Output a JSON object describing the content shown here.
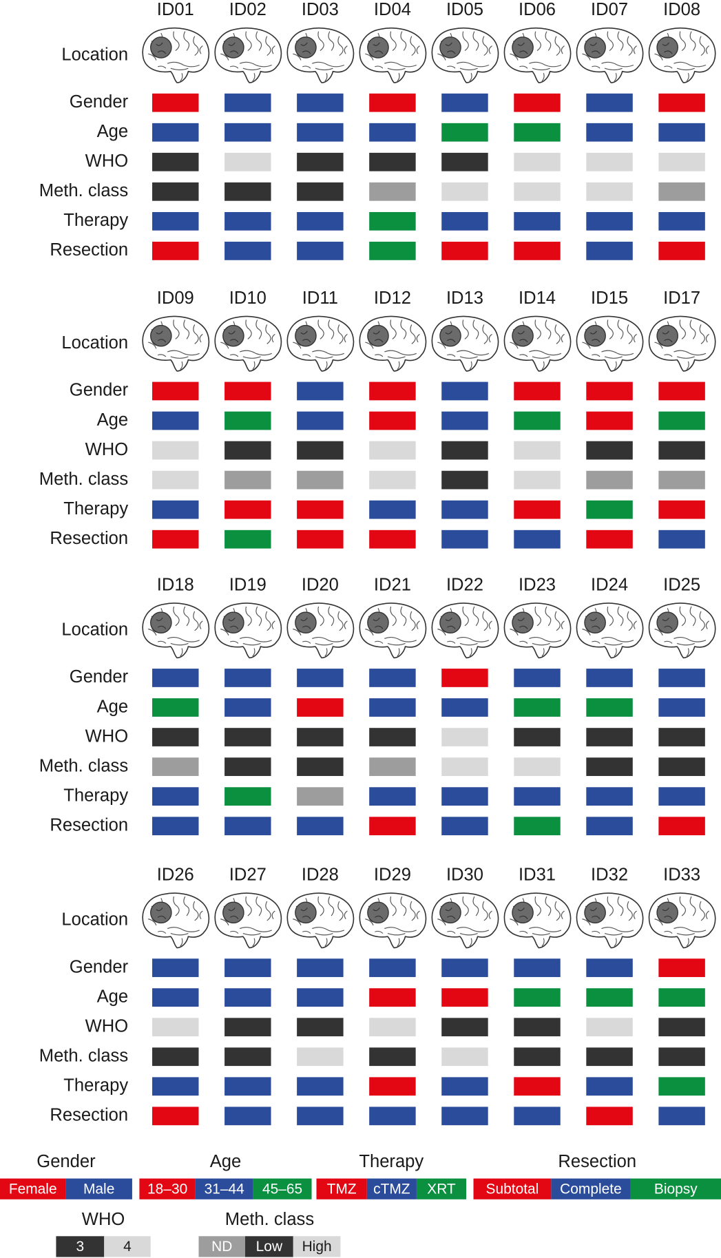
{
  "location_label": "Location",
  "row_labels": [
    "Gender",
    "Age",
    "WHO",
    "Meth. class",
    "Therapy",
    "Resection"
  ],
  "panels": [
    {
      "ids": [
        "ID01",
        "ID02",
        "ID03",
        "ID04",
        "ID05",
        "ID06",
        "ID07",
        "ID08"
      ],
      "rows": [
        [
          "Female",
          "Male",
          "Male",
          "Female",
          "Male",
          "Female",
          "Male",
          "Female"
        ],
        [
          "31–44",
          "31–44",
          "31–44",
          "31–44",
          "45–65",
          "45–65",
          "31–44",
          "31–44"
        ],
        [
          "3",
          "4",
          "3",
          "3",
          "3",
          "4",
          "4",
          "4"
        ],
        [
          "Low",
          "Low",
          "Low",
          "ND",
          "High",
          "High",
          "High",
          "ND"
        ],
        [
          "cTMZ",
          "cTMZ",
          "cTMZ",
          "XRT",
          "cTMZ",
          "cTMZ",
          "cTMZ",
          "cTMZ"
        ],
        [
          "Subtotal",
          "Complete",
          "Complete",
          "Biopsy",
          "Subtotal",
          "Subtotal",
          "Complete",
          "Subtotal"
        ]
      ]
    },
    {
      "ids": [
        "ID09",
        "ID10",
        "ID11",
        "ID12",
        "ID13",
        "ID14",
        "ID15",
        "ID17"
      ],
      "rows": [
        [
          "Female",
          "Female",
          "Male",
          "Female",
          "Male",
          "Female",
          "Female",
          "Female"
        ],
        [
          "31–44",
          "45–65",
          "31–44",
          "18–30",
          "31–44",
          "45–65",
          "18–30",
          "45–65"
        ],
        [
          "4",
          "3",
          "3",
          "4",
          "3",
          "4",
          "3",
          "3"
        ],
        [
          "High",
          "ND",
          "ND",
          "High",
          "Low",
          "High",
          "ND",
          "ND"
        ],
        [
          "cTMZ",
          "TMZ",
          "TMZ",
          "cTMZ",
          "cTMZ",
          "TMZ",
          "XRT",
          "TMZ"
        ],
        [
          "Subtotal",
          "Biopsy",
          "Subtotal",
          "Subtotal",
          "Complete",
          "Complete",
          "Subtotal",
          "Complete"
        ]
      ]
    },
    {
      "ids": [
        "ID18",
        "ID19",
        "ID20",
        "ID21",
        "ID22",
        "ID23",
        "ID24",
        "ID25"
      ],
      "rows": [
        [
          "Male",
          "Male",
          "Male",
          "Male",
          "Female",
          "Male",
          "Male",
          "Male"
        ],
        [
          "45–65",
          "31–44",
          "18–30",
          "31–44",
          "31–44",
          "45–65",
          "45–65",
          "31–44"
        ],
        [
          "3",
          "3",
          "3",
          "3",
          "4",
          "3",
          "3",
          "3"
        ],
        [
          "ND",
          "Low",
          "Low",
          "ND",
          "High",
          "High",
          "Low",
          "Low"
        ],
        [
          "cTMZ",
          "XRT",
          null,
          "cTMZ",
          "cTMZ",
          "cTMZ",
          "cTMZ",
          "cTMZ"
        ],
        [
          "Complete",
          "Complete",
          "Complete",
          "Subtotal",
          "Complete",
          "Biopsy",
          "Complete",
          "Subtotal"
        ]
      ]
    },
    {
      "ids": [
        "ID26",
        "ID27",
        "ID28",
        "ID29",
        "ID30",
        "ID31",
        "ID32",
        "ID33"
      ],
      "rows": [
        [
          "Male",
          "Male",
          "Male",
          "Male",
          "Male",
          "Male",
          "Male",
          "Female"
        ],
        [
          "31–44",
          "31–44",
          "31–44",
          "18–30",
          "18–30",
          "45–65",
          "45–65",
          "45–65"
        ],
        [
          "4",
          "3",
          "3",
          "4",
          "3",
          "3",
          "4",
          "3"
        ],
        [
          "Low",
          "Low",
          "High",
          "Low",
          "High",
          "Low",
          "Low",
          "Low"
        ],
        [
          "cTMZ",
          "cTMZ",
          "cTMZ",
          "TMZ",
          "cTMZ",
          "TMZ",
          "cTMZ",
          "XRT"
        ],
        [
          "Subtotal",
          "Complete",
          "Complete",
          "Complete",
          "Complete",
          "Complete",
          "Subtotal",
          "Complete"
        ]
      ]
    }
  ],
  "legends": [
    {
      "title": "Gender",
      "items": [
        {
          "label": "Female",
          "color": "#e30613"
        },
        {
          "label": "Male",
          "color": "#2b4c9b"
        }
      ]
    },
    {
      "title": "Age",
      "items": [
        {
          "label": "18–30",
          "color": "#e30613"
        },
        {
          "label": "31–44",
          "color": "#2b4c9b"
        },
        {
          "label": "45–65",
          "color": "#0b9040"
        }
      ]
    },
    {
      "title": "Therapy",
      "items": [
        {
          "label": "TMZ",
          "color": "#e30613"
        },
        {
          "label": "cTMZ",
          "color": "#2b4c9b"
        },
        {
          "label": "XRT",
          "color": "#0b9040"
        }
      ]
    },
    {
      "title": "Resection",
      "items": [
        {
          "label": "Subtotal",
          "color": "#e30613"
        },
        {
          "label": "Complete",
          "color": "#2b4c9b"
        },
        {
          "label": "Biopsy",
          "color": "#0b9040"
        }
      ]
    },
    {
      "title": "WHO",
      "items": [
        {
          "label": "3",
          "color": "#333333"
        },
        {
          "label": "4",
          "color": "#d9d9d9"
        }
      ]
    },
    {
      "title": "Meth. class",
      "items": [
        {
          "label": "ND",
          "color": "#9d9d9d"
        },
        {
          "label": "Low",
          "color": "#333333"
        },
        {
          "label": "High",
          "color": "#d9d9d9"
        }
      ]
    }
  ]
}
